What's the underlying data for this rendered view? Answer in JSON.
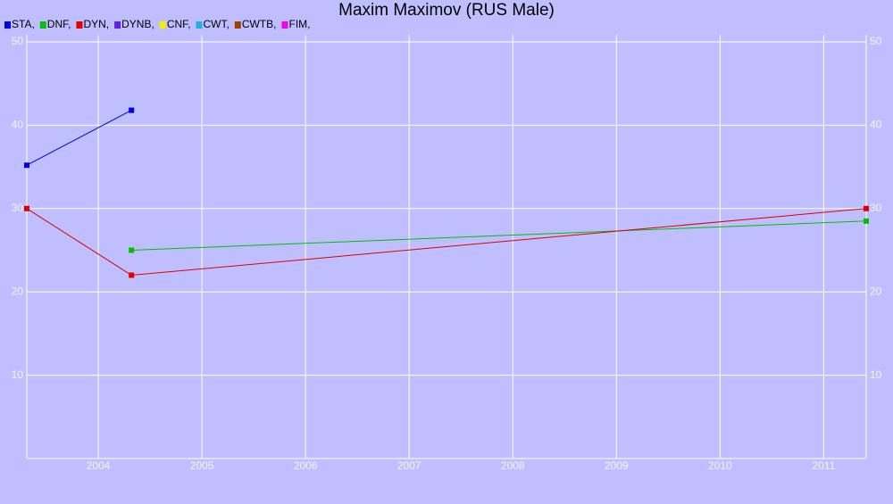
{
  "chart_data": {
    "type": "line",
    "title": "Maxim Maximov (RUS Male)",
    "series": [
      {
        "name": "STA,",
        "color": "#0000e0",
        "x": [
          2003.31,
          2004.32
        ],
        "values": [
          35.2,
          41.8
        ]
      },
      {
        "name": "DNF,",
        "color": "#00c000",
        "x": [
          2004.32,
          2011.41
        ],
        "values": [
          25,
          28.5
        ]
      },
      {
        "name": "DYN,",
        "color": "#e00000",
        "x": [
          2003.31,
          2004.32,
          2011.41
        ],
        "values": [
          30,
          22,
          30
        ]
      },
      {
        "name": "DYNB,",
        "color": "#6020e0",
        "x": [],
        "values": []
      },
      {
        "name": "CNF,",
        "color": "#f0f000",
        "x": [],
        "values": []
      },
      {
        "name": "CWT,",
        "color": "#20b0e0",
        "x": [],
        "values": []
      },
      {
        "name": "CWTB,",
        "color": "#a04000",
        "x": [],
        "values": []
      },
      {
        "name": "FIM,",
        "color": "#f000f0",
        "x": [],
        "values": []
      }
    ],
    "xlim": [
      2003.31,
      2011.41
    ],
    "xticks": [
      2004,
      2005,
      2006,
      2007,
      2008,
      2009,
      2010,
      2011
    ],
    "ylim": [
      0,
      50
    ],
    "yticks": [
      10,
      20,
      30,
      40,
      50
    ],
    "grid": true
  }
}
